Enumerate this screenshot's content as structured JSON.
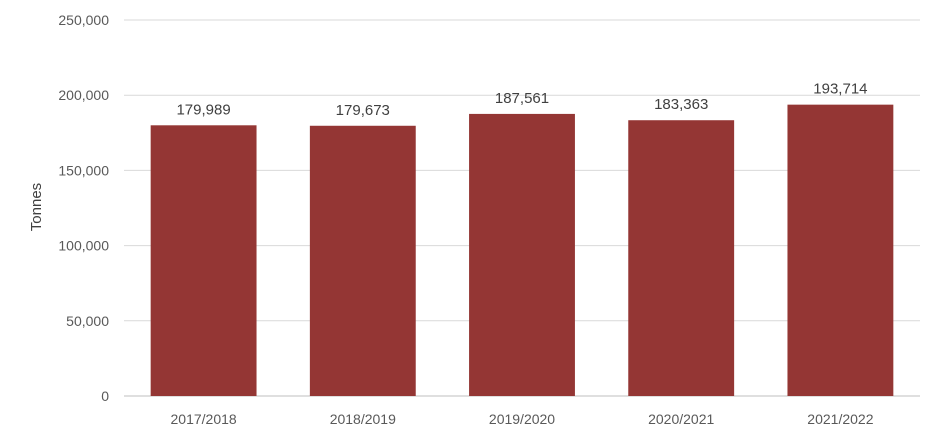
{
  "chart_data": {
    "type": "bar",
    "title": "",
    "xlabel": "",
    "ylabel": "Tonnes",
    "categories": [
      "2017/2018",
      "2018/2019",
      "2019/2020",
      "2020/2021",
      "2021/2022"
    ],
    "values": [
      179989,
      179673,
      187561,
      183363,
      193714
    ],
    "value_labels": [
      "179,989",
      "179,673",
      "187,561",
      "183,363",
      "193,714"
    ],
    "ylim": [
      0,
      250000
    ],
    "yticks": [
      0,
      50000,
      100000,
      150000,
      200000,
      250000
    ],
    "ytick_labels": [
      "0",
      "50,000",
      "100,000",
      "150,000",
      "200,000",
      "250,000"
    ],
    "grid": true,
    "legend": "none",
    "bar_color": "#943634"
  }
}
